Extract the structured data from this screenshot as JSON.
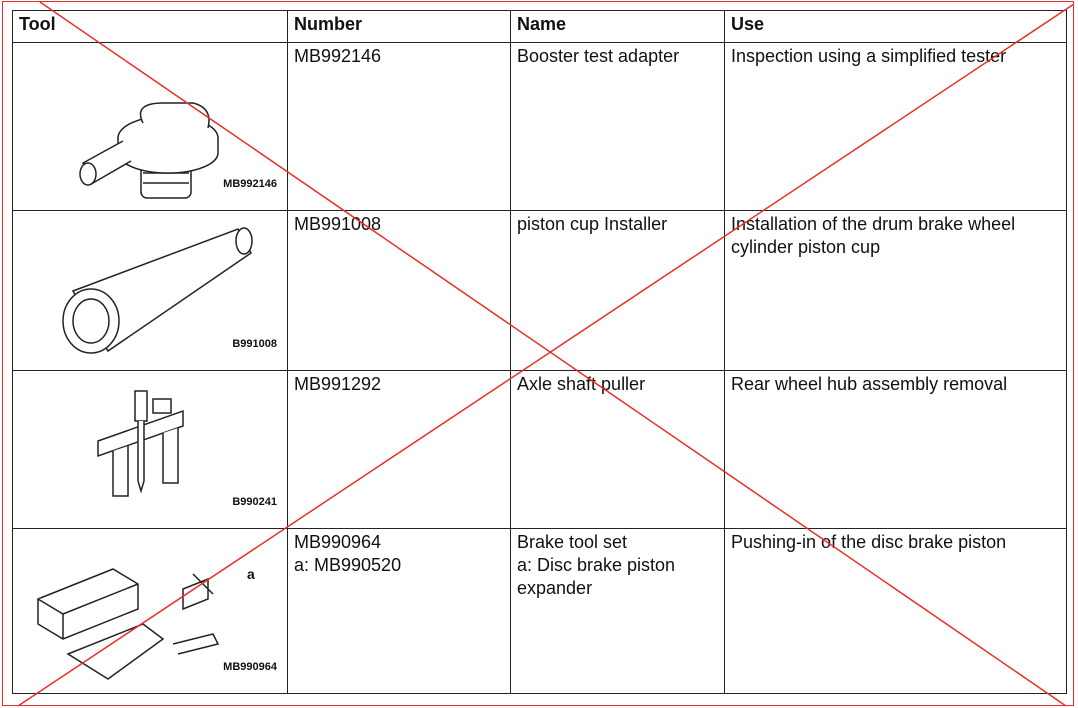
{
  "table": {
    "headers": [
      "Tool",
      "Number",
      "Name",
      "Use"
    ],
    "rows": [
      {
        "image_label": "MB992146",
        "number": [
          "MB992146"
        ],
        "name": [
          "Booster test adapter"
        ],
        "use": "Inspection using a simplified tester"
      },
      {
        "image_label": "B991008",
        "number": [
          "MB991008"
        ],
        "name": [
          "piston cup Installer"
        ],
        "use": "Installation of the drum brake wheel cylinder piston cup"
      },
      {
        "image_label": "B990241",
        "number": [
          "MB991292"
        ],
        "name": [
          "Axle shaft puller"
        ],
        "use": "Rear wheel hub assembly removal"
      },
      {
        "image_label": "MB990964",
        "image_callout": "a",
        "number": [
          "MB990964",
          "a: MB990520"
        ],
        "name": [
          "Brake tool set",
          "a: Disc brake piston expander"
        ],
        "use": "Pushing-in of the disc brake piston"
      }
    ]
  }
}
